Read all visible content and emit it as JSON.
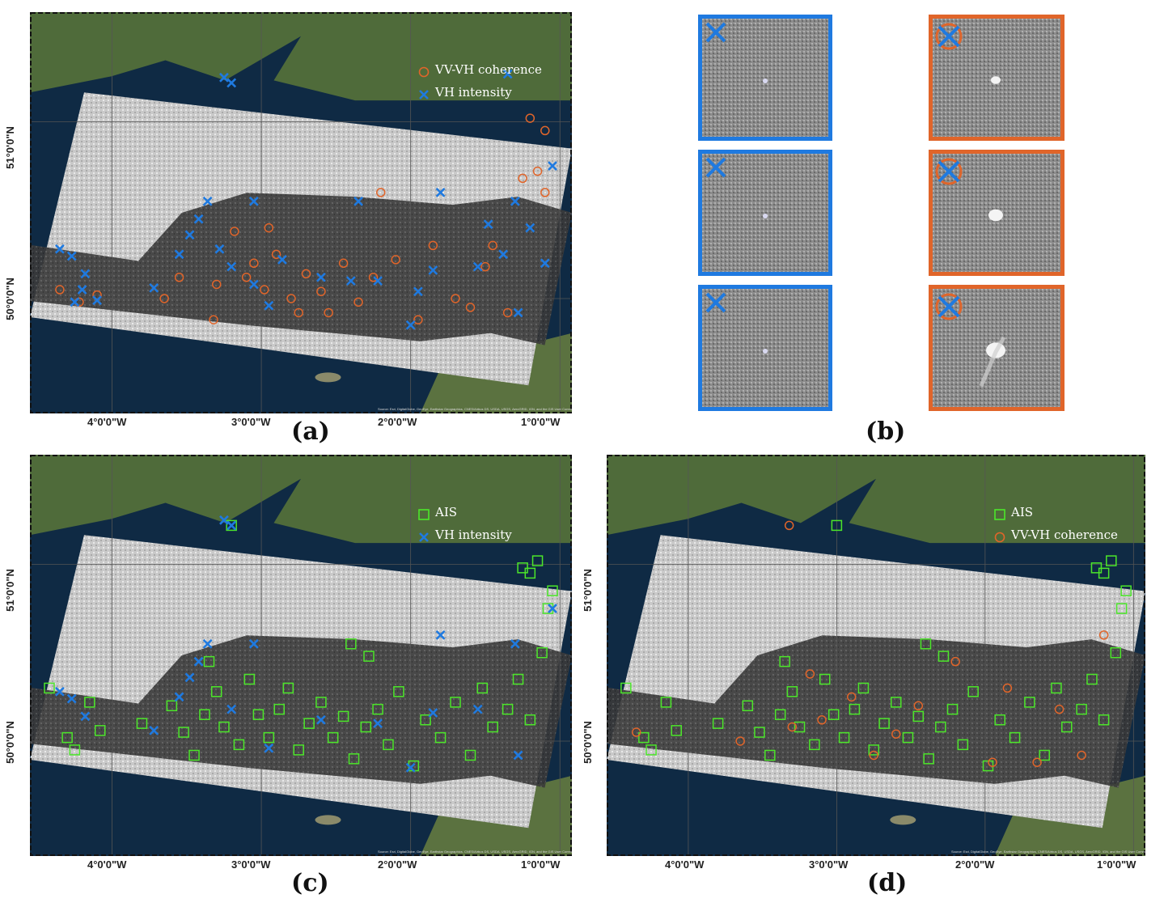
{
  "panels": [
    {
      "id": "a",
      "label": "(a)",
      "legend": [
        {
          "text": "VV-VH coherence",
          "symbol": "circle",
          "color": "#e0652a"
        },
        {
          "text": "VH intensity",
          "symbol": "cross",
          "color": "#1f7ae0"
        }
      ]
    },
    {
      "id": "b",
      "label": "(b)"
    },
    {
      "id": "c",
      "label": "(c)",
      "legend": [
        {
          "text": "AIS",
          "symbol": "square",
          "color": "#4ce62a"
        },
        {
          "text": "VH intensity",
          "symbol": "cross",
          "color": "#1f7ae0"
        }
      ]
    },
    {
      "id": "d",
      "label": "(d)",
      "legend": [
        {
          "text": "AIS",
          "symbol": "square",
          "color": "#4ce62a"
        },
        {
          "text": "VV-VH coherence",
          "symbol": "circle",
          "color": "#e0652a"
        }
      ]
    }
  ],
  "axes": {
    "x_ticks": [
      "4°0'0\"W",
      "3°0'0\"W",
      "2°0'0\"W",
      "1°0'0\"W"
    ],
    "y_ticks": [
      "51°0'0\"N",
      "50°0'0\"N"
    ]
  },
  "attribution": "Source: Esri, DigitalGlobe, GeoEye, Earthstar Geographics, CNES/Airbus DS, USDA, USGS, AeroGRID, IGN, and the GIS User Community",
  "colors": {
    "coherence": "#e0652a",
    "intensity": "#1f7ae0",
    "ais": "#4ce62a",
    "sea": "#0f2a44",
    "land": "#4f6b3a",
    "sar": "#d8d8d8"
  },
  "markers": {
    "intensity_a": [
      [
        -4.35,
        50.28
      ],
      [
        -4.27,
        50.24
      ],
      [
        -4.18,
        50.14
      ],
      [
        -4.2,
        50.05
      ],
      [
        -4.25,
        49.98
      ],
      [
        -4.1,
        49.99
      ],
      [
        -3.72,
        50.06
      ],
      [
        -3.55,
        50.25
      ],
      [
        -3.48,
        50.36
      ],
      [
        -3.42,
        50.45
      ],
      [
        -3.36,
        50.55
      ],
      [
        -3.28,
        50.28
      ],
      [
        -3.2,
        50.18
      ],
      [
        -3.05,
        50.08
      ],
      [
        -3.05,
        50.55
      ],
      [
        -2.95,
        49.96
      ],
      [
        -2.86,
        50.22
      ],
      [
        -2.6,
        50.12
      ],
      [
        -2.4,
        50.1
      ],
      [
        -2.35,
        50.55
      ],
      [
        -2.22,
        50.1
      ],
      [
        -2.0,
        49.85
      ],
      [
        -1.95,
        50.04
      ],
      [
        -1.85,
        50.16
      ],
      [
        -1.8,
        50.6
      ],
      [
        -1.55,
        50.18
      ],
      [
        -1.48,
        50.42
      ],
      [
        -1.38,
        50.25
      ],
      [
        -1.3,
        50.55
      ],
      [
        -1.28,
        49.92
      ],
      [
        -1.2,
        50.4
      ],
      [
        -1.1,
        50.2
      ],
      [
        -1.05,
        50.75
      ],
      [
        -1.35,
        51.27
      ],
      [
        -3.2,
        51.22
      ],
      [
        -3.25,
        51.25
      ]
    ],
    "coherence_a": [
      [
        -4.35,
        50.05
      ],
      [
        -4.22,
        49.98
      ],
      [
        -4.1,
        50.02
      ],
      [
        -3.65,
        50.0
      ],
      [
        -3.55,
        50.12
      ],
      [
        -3.3,
        50.08
      ],
      [
        -3.1,
        50.12
      ],
      [
        -3.05,
        50.2
      ],
      [
        -2.98,
        50.05
      ],
      [
        -2.9,
        50.25
      ],
      [
        -2.8,
        50.0
      ],
      [
        -2.7,
        50.14
      ],
      [
        -2.6,
        50.04
      ],
      [
        -2.55,
        49.92
      ],
      [
        -2.45,
        50.2
      ],
      [
        -2.35,
        49.98
      ],
      [
        -2.25,
        50.12
      ],
      [
        -2.2,
        50.6
      ],
      [
        -2.1,
        50.22
      ],
      [
        -1.95,
        49.88
      ],
      [
        -1.85,
        50.3
      ],
      [
        -1.7,
        50.0
      ],
      [
        -1.6,
        49.95
      ],
      [
        -1.5,
        50.18
      ],
      [
        -1.45,
        50.3
      ],
      [
        -1.35,
        49.92
      ],
      [
        -1.25,
        50.68
      ],
      [
        -1.15,
        50.72
      ],
      [
        -1.1,
        50.6
      ],
      [
        -1.2,
        51.02
      ],
      [
        -1.1,
        50.95
      ],
      [
        -3.32,
        49.88
      ],
      [
        -3.18,
        50.38
      ],
      [
        -2.95,
        50.4
      ],
      [
        -2.75,
        49.92
      ]
    ],
    "ais_c": [
      [
        -4.42,
        50.3
      ],
      [
        -4.3,
        50.02
      ],
      [
        -4.25,
        49.95
      ],
      [
        -4.15,
        50.22
      ],
      [
        -4.08,
        50.06
      ],
      [
        -3.8,
        50.1
      ],
      [
        -3.6,
        50.2
      ],
      [
        -3.52,
        50.05
      ],
      [
        -3.45,
        49.92
      ],
      [
        -3.38,
        50.15
      ],
      [
        -3.3,
        50.28
      ],
      [
        -3.25,
        50.08
      ],
      [
        -3.15,
        49.98
      ],
      [
        -3.08,
        50.35
      ],
      [
        -3.02,
        50.15
      ],
      [
        -2.95,
        50.02
      ],
      [
        -2.88,
        50.18
      ],
      [
        -2.82,
        50.3
      ],
      [
        -2.75,
        49.95
      ],
      [
        -2.68,
        50.1
      ],
      [
        -2.6,
        50.22
      ],
      [
        -2.52,
        50.02
      ],
      [
        -2.45,
        50.14
      ],
      [
        -2.38,
        49.9
      ],
      [
        -2.3,
        50.08
      ],
      [
        -2.22,
        50.18
      ],
      [
        -2.15,
        49.98
      ],
      [
        -2.08,
        50.28
      ],
      [
        -1.98,
        49.86
      ],
      [
        -1.9,
        50.12
      ],
      [
        -1.8,
        50.02
      ],
      [
        -1.7,
        50.22
      ],
      [
        -1.6,
        49.92
      ],
      [
        -1.52,
        50.3
      ],
      [
        -1.45,
        50.08
      ],
      [
        -1.35,
        50.18
      ],
      [
        -1.28,
        50.35
      ],
      [
        -1.2,
        50.12
      ],
      [
        -1.12,
        50.5
      ],
      [
        -1.08,
        50.75
      ],
      [
        -1.05,
        50.85
      ],
      [
        -1.2,
        50.95
      ],
      [
        -1.15,
        51.02
      ],
      [
        -1.25,
        50.98
      ],
      [
        -3.2,
        51.22
      ],
      [
        -2.4,
        50.55
      ],
      [
        -2.28,
        50.48
      ],
      [
        -3.35,
        50.45
      ]
    ],
    "intensity_c": [
      [
        -4.35,
        50.28
      ],
      [
        -4.27,
        50.24
      ],
      [
        -4.18,
        50.14
      ],
      [
        -3.72,
        50.06
      ],
      [
        -3.55,
        50.25
      ],
      [
        -3.48,
        50.36
      ],
      [
        -3.42,
        50.45
      ],
      [
        -3.36,
        50.55
      ],
      [
        -3.2,
        50.18
      ],
      [
        -3.05,
        50.55
      ],
      [
        -2.95,
        49.96
      ],
      [
        -2.6,
        50.12
      ],
      [
        -2.22,
        50.1
      ],
      [
        -2.0,
        49.85
      ],
      [
        -1.85,
        50.16
      ],
      [
        -1.8,
        50.6
      ],
      [
        -1.55,
        50.18
      ],
      [
        -1.3,
        50.55
      ],
      [
        -1.28,
        49.92
      ],
      [
        -1.05,
        50.75
      ],
      [
        -3.2,
        51.22
      ],
      [
        -3.25,
        51.25
      ]
    ],
    "ais_d": [
      [
        -4.42,
        50.3
      ],
      [
        -4.3,
        50.02
      ],
      [
        -4.25,
        49.95
      ],
      [
        -4.15,
        50.22
      ],
      [
        -4.08,
        50.06
      ],
      [
        -3.8,
        50.1
      ],
      [
        -3.6,
        50.2
      ],
      [
        -3.52,
        50.05
      ],
      [
        -3.45,
        49.92
      ],
      [
        -3.38,
        50.15
      ],
      [
        -3.3,
        50.28
      ],
      [
        -3.25,
        50.08
      ],
      [
        -3.15,
        49.98
      ],
      [
        -3.08,
        50.35
      ],
      [
        -3.02,
        50.15
      ],
      [
        -2.95,
        50.02
      ],
      [
        -2.88,
        50.18
      ],
      [
        -2.82,
        50.3
      ],
      [
        -2.75,
        49.95
      ],
      [
        -2.68,
        50.1
      ],
      [
        -2.6,
        50.22
      ],
      [
        -2.52,
        50.02
      ],
      [
        -2.45,
        50.14
      ],
      [
        -2.38,
        49.9
      ],
      [
        -2.3,
        50.08
      ],
      [
        -2.22,
        50.18
      ],
      [
        -2.15,
        49.98
      ],
      [
        -2.08,
        50.28
      ],
      [
        -1.98,
        49.86
      ],
      [
        -1.9,
        50.12
      ],
      [
        -1.8,
        50.02
      ],
      [
        -1.7,
        50.22
      ],
      [
        -1.6,
        49.92
      ],
      [
        -1.52,
        50.3
      ],
      [
        -1.45,
        50.08
      ],
      [
        -1.35,
        50.18
      ],
      [
        -1.28,
        50.35
      ],
      [
        -1.2,
        50.12
      ],
      [
        -1.12,
        50.5
      ],
      [
        -1.08,
        50.75
      ],
      [
        -1.05,
        50.85
      ],
      [
        -1.2,
        50.95
      ],
      [
        -1.15,
        51.02
      ],
      [
        -1.25,
        50.98
      ],
      [
        -3.0,
        51.22
      ],
      [
        -2.4,
        50.55
      ],
      [
        -2.28,
        50.48
      ],
      [
        -3.35,
        50.45
      ]
    ],
    "coherence_d": [
      [
        -4.35,
        50.05
      ],
      [
        -3.65,
        50.0
      ],
      [
        -3.3,
        50.08
      ],
      [
        -3.1,
        50.12
      ],
      [
        -2.9,
        50.25
      ],
      [
        -2.6,
        50.04
      ],
      [
        -2.45,
        50.2
      ],
      [
        -2.2,
        50.45
      ],
      [
        -1.95,
        49.88
      ],
      [
        -1.85,
        50.3
      ],
      [
        -1.5,
        50.18
      ],
      [
        -1.35,
        49.92
      ],
      [
        -1.2,
        50.6
      ],
      [
        -3.32,
        51.22
      ],
      [
        -3.18,
        50.38
      ],
      [
        -2.75,
        49.92
      ],
      [
        -1.65,
        49.88
      ]
    ]
  },
  "chips": {
    "blue_count": 3,
    "orange_count": 3,
    "blue_color": "#1f7ae0",
    "orange_color": "#e0652a"
  }
}
